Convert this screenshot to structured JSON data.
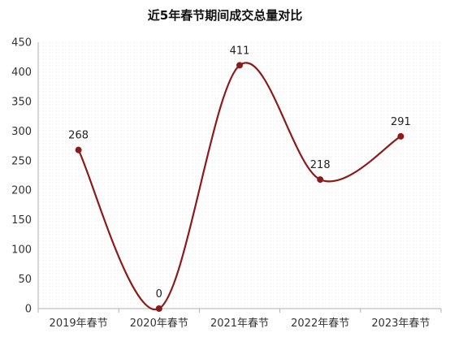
{
  "chart_data": {
    "type": "line",
    "title": "近5年春节期间成交总量对比",
    "categories": [
      "2019年春节",
      "2020年春节",
      "2021年春节",
      "2022年春节",
      "2023年春节"
    ],
    "series": [
      {
        "values": [
          268,
          0,
          411,
          218,
          291
        ]
      }
    ],
    "data_labels": [
      "268",
      "0",
      "411",
      "218",
      "291"
    ],
    "yticks": [
      0,
      50,
      100,
      150,
      200,
      250,
      300,
      350,
      400,
      450
    ],
    "ylim": [
      0,
      450
    ],
    "smooth": true,
    "grid": "dotted-background",
    "legend": "none",
    "colors": {
      "line": "#8B1A1A",
      "marker": "#8B1A1A",
      "axis": "#B0B0B0"
    }
  }
}
